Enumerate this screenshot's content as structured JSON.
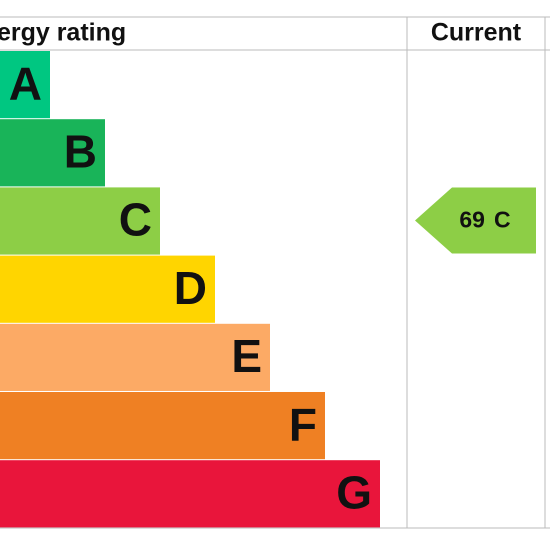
{
  "header": {
    "title": "Energy rating",
    "current": "Current"
  },
  "bands": [
    {
      "letter": "A",
      "color": "#00c781"
    },
    {
      "letter": "B",
      "color": "#19b459"
    },
    {
      "letter": "C",
      "color": "#8dce46"
    },
    {
      "letter": "D",
      "color": "#ffd500"
    },
    {
      "letter": "E",
      "color": "#fcaa65"
    },
    {
      "letter": "F",
      "color": "#ef8023"
    },
    {
      "letter": "G",
      "color": "#e9153b"
    }
  ],
  "current": {
    "value": 69,
    "band": "C"
  }
}
